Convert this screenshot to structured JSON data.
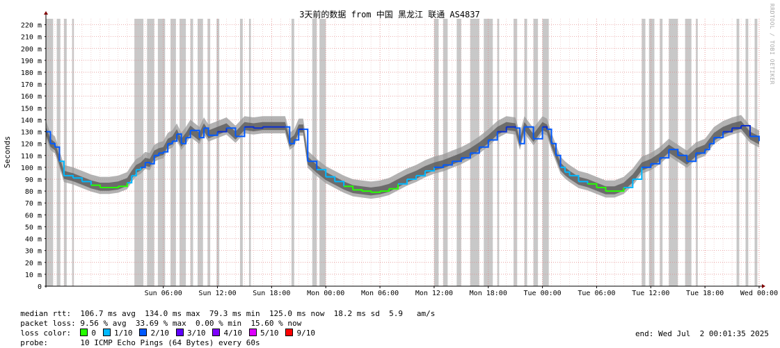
{
  "chart_data": {
    "type": "line",
    "title": "3天前的数据 from 中国 黑龙江 联通 AS4837",
    "ylabel": "Seconds",
    "ylim": [
      0,
      225
    ],
    "yticks": [
      {
        "v": 0,
        "label": "0"
      },
      {
        "v": 10,
        "label": "10 m"
      },
      {
        "v": 20,
        "label": "20 m"
      },
      {
        "v": 30,
        "label": "30 m"
      },
      {
        "v": 40,
        "label": "40 m"
      },
      {
        "v": 50,
        "label": "50 m"
      },
      {
        "v": 60,
        "label": "60 m"
      },
      {
        "v": 70,
        "label": "70 m"
      },
      {
        "v": 80,
        "label": "80 m"
      },
      {
        "v": 90,
        "label": "90 m"
      },
      {
        "v": 100,
        "label": "100 m"
      },
      {
        "v": 110,
        "label": "110 m"
      },
      {
        "v": 120,
        "label": "120 m"
      },
      {
        "v": 130,
        "label": "130 m"
      },
      {
        "v": 140,
        "label": "140 m"
      },
      {
        "v": 150,
        "label": "150 m"
      },
      {
        "v": 160,
        "label": "160 m"
      },
      {
        "v": 170,
        "label": "170 m"
      },
      {
        "v": 180,
        "label": "180 m"
      },
      {
        "v": 190,
        "label": "190 m"
      },
      {
        "v": 200,
        "label": "200 m"
      },
      {
        "v": 210,
        "label": "210 m"
      },
      {
        "v": 220,
        "label": "220 m"
      }
    ],
    "x_hours_range": [
      -7.0,
      72.0
    ],
    "xticks": [
      {
        "h": 6,
        "label": "Sun 06:00"
      },
      {
        "h": 12,
        "label": "Sun 12:00"
      },
      {
        "h": 18,
        "label": "Sun 18:00"
      },
      {
        "h": 24,
        "label": "Mon 00:00"
      },
      {
        "h": 30,
        "label": "Mon 06:00"
      },
      {
        "h": 36,
        "label": "Mon 12:00"
      },
      {
        "h": 42,
        "label": "Mon 18:00"
      },
      {
        "h": 48,
        "label": "Tue 00:00"
      },
      {
        "h": 54,
        "label": "Tue 06:00"
      },
      {
        "h": 60,
        "label": "Tue 12:00"
      },
      {
        "h": 66,
        "label": "Tue 18:00"
      },
      {
        "h": 72,
        "label": "Wed 00:00"
      }
    ],
    "median_rtt": [
      [
        -7.0,
        130
      ],
      [
        -6.5,
        120
      ],
      [
        -6.0,
        117
      ],
      [
        -5.5,
        105
      ],
      [
        -5.0,
        93
      ],
      [
        -4.0,
        91
      ],
      [
        -3.0,
        88
      ],
      [
        -2.0,
        85
      ],
      [
        -1.0,
        83
      ],
      [
        0.0,
        83
      ],
      [
        1.0,
        84
      ],
      [
        2.0,
        87
      ],
      [
        2.5,
        93
      ],
      [
        3.0,
        98
      ],
      [
        3.5,
        100
      ],
      [
        4.0,
        104
      ],
      [
        4.5,
        103
      ],
      [
        5.0,
        110
      ],
      [
        5.5,
        112
      ],
      [
        6.0,
        113
      ],
      [
        6.5,
        120
      ],
      [
        7.0,
        122
      ],
      [
        7.5,
        128
      ],
      [
        8.0,
        120
      ],
      [
        8.5,
        125
      ],
      [
        9.0,
        131
      ],
      [
        10.0,
        125
      ],
      [
        10.5,
        133
      ],
      [
        11.0,
        127
      ],
      [
        12.0,
        130
      ],
      [
        13.0,
        133
      ],
      [
        14.0,
        126
      ],
      [
        15.0,
        134
      ],
      [
        16.0,
        133
      ],
      [
        17.0,
        134
      ],
      [
        18.0,
        134
      ],
      [
        19.5,
        134
      ],
      [
        20.0,
        120
      ],
      [
        20.5,
        123
      ],
      [
        21.0,
        132
      ],
      [
        21.5,
        132
      ],
      [
        22.0,
        105
      ],
      [
        23.0,
        98
      ],
      [
        24.0,
        92
      ],
      [
        25.0,
        88
      ],
      [
        26.0,
        84
      ],
      [
        27.0,
        81
      ],
      [
        28.0,
        80
      ],
      [
        29.0,
        79
      ],
      [
        30.0,
        80
      ],
      [
        31.0,
        82
      ],
      [
        32.0,
        86
      ],
      [
        33.0,
        90
      ],
      [
        34.0,
        93
      ],
      [
        35.0,
        97
      ],
      [
        36.0,
        100
      ],
      [
        37.0,
        102
      ],
      [
        38.0,
        105
      ],
      [
        39.0,
        108
      ],
      [
        40.0,
        112
      ],
      [
        41.0,
        117
      ],
      [
        42.0,
        123
      ],
      [
        43.0,
        130
      ],
      [
        44.0,
        134
      ],
      [
        45.0,
        133
      ],
      [
        45.5,
        120
      ],
      [
        46.0,
        134
      ],
      [
        47.0,
        124
      ],
      [
        48.0,
        134
      ],
      [
        48.5,
        132
      ],
      [
        49.0,
        120
      ],
      [
        49.5,
        110
      ],
      [
        50.0,
        100
      ],
      [
        50.5,
        96
      ],
      [
        51.0,
        93
      ],
      [
        52.0,
        88
      ],
      [
        53.0,
        86
      ],
      [
        54.0,
        83
      ],
      [
        55.0,
        80
      ],
      [
        56.0,
        80
      ],
      [
        57.0,
        83
      ],
      [
        58.0,
        90
      ],
      [
        59.0,
        100
      ],
      [
        60.0,
        103
      ],
      [
        61.0,
        108
      ],
      [
        62.0,
        115
      ],
      [
        63.0,
        110
      ],
      [
        64.0,
        105
      ],
      [
        65.0,
        112
      ],
      [
        66.0,
        115
      ],
      [
        66.5,
        120
      ],
      [
        67.0,
        125
      ],
      [
        68.0,
        130
      ],
      [
        69.0,
        133
      ],
      [
        70.0,
        135
      ],
      [
        71.0,
        126
      ],
      [
        72.0,
        122
      ]
    ],
    "smoke_spread": 9,
    "loss_bands": [
      [
        -7.0,
        -6.2
      ],
      [
        -5.8,
        -5.4
      ],
      [
        -5.0,
        -4.7
      ],
      [
        -4.1,
        -3.9
      ],
      [
        2.8,
        3.8
      ],
      [
        4.2,
        5.0
      ],
      [
        5.4,
        6.2
      ],
      [
        6.8,
        7.4
      ],
      [
        7.8,
        8.5
      ],
      [
        9.0,
        9.3
      ],
      [
        9.8,
        10.4
      ],
      [
        10.9,
        11.2
      ],
      [
        11.9,
        12.2
      ],
      [
        14.5,
        14.8
      ],
      [
        15.5,
        15.7
      ],
      [
        20.2,
        20.5
      ],
      [
        22.5,
        23.0
      ],
      [
        23.3,
        24.0
      ],
      [
        36.0,
        36.5
      ],
      [
        37.0,
        37.5
      ],
      [
        38.5,
        39.0
      ],
      [
        40.0,
        41.0
      ],
      [
        41.5,
        42.5
      ],
      [
        43.0,
        43.2
      ],
      [
        44.8,
        45.2
      ],
      [
        46.0,
        46.3
      ],
      [
        47.0,
        47.5
      ],
      [
        48.0,
        48.7
      ],
      [
        59.0,
        59.4
      ],
      [
        59.8,
        60.4
      ],
      [
        61.0,
        61.3
      ],
      [
        62.0,
        63.0
      ],
      [
        63.8,
        64.5
      ],
      [
        65.0,
        65.2
      ],
      [
        69.5,
        69.8
      ],
      [
        70.5,
        70.8
      ],
      [
        71.5,
        71.8
      ]
    ]
  },
  "stats": {
    "median_label": "median rtt:",
    "median_avg": "106.7 ms avg",
    "median_max": "134.0 ms max",
    "median_min": "79.3 ms min",
    "median_now": "125.0 ms now",
    "median_sd": "18.2 ms sd",
    "median_am": "5.9",
    "median_am_unit": "am/s",
    "loss_label": "packet loss:",
    "loss_avg": "9.56 % avg",
    "loss_max": "33.69 % max",
    "loss_min": "0.00 % min",
    "loss_now": "15.60 % now",
    "color_label": "loss color:",
    "probe_label": "probe:",
    "probe_text": "10 ICMP Echo Pings (64 Bytes) every 60s",
    "end_text": "end: Wed Jul  2 00:01:35 2025"
  },
  "loss_colors": [
    {
      "label": "0",
      "color": "#26ff00"
    },
    {
      "label": "1/10",
      "color": "#00b8ff"
    },
    {
      "label": "2/10",
      "color": "#0059ff"
    },
    {
      "label": "3/10",
      "color": "#5e00ff"
    },
    {
      "label": "4/10",
      "color": "#7e00ff"
    },
    {
      "label": "5/10",
      "color": "#dd00ff"
    },
    {
      "label": "9/10",
      "color": "#ff0000"
    }
  ],
  "watermark": "RRDTOOL / TOBI OETIKER"
}
